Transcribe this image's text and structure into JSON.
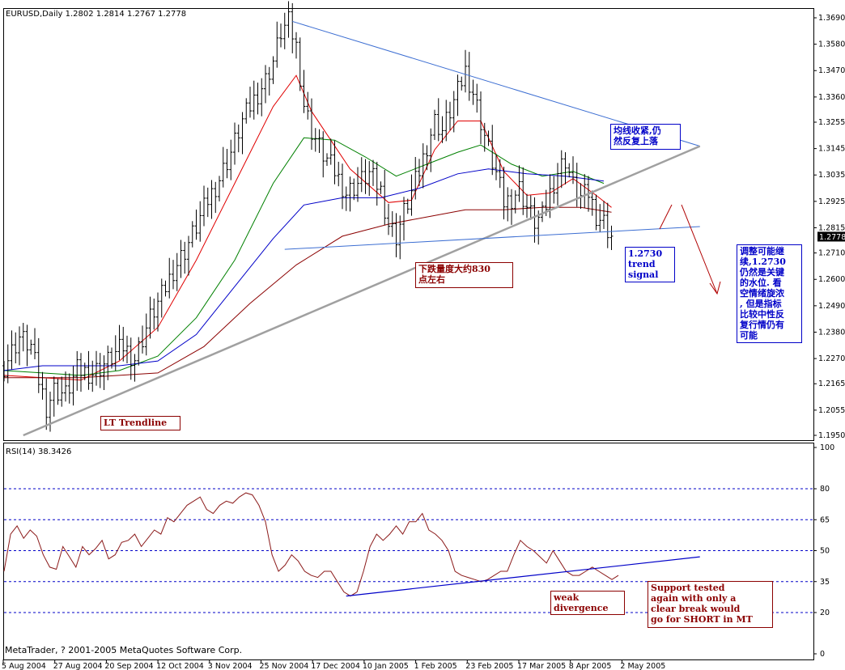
{
  "price_header": "EURUSD,Daily  1.2802 1.2814 1.2767 1.2778",
  "rsi_header": "RSI(14) 38.3426",
  "copyright": "MetaTrader, ? 2001-2005 MetaQuotes Software Corp.",
  "current_price_label": "1.2778",
  "colors": {
    "bar": "#000000",
    "ma_fast": "#e00000",
    "ma_mid": "#008000",
    "ma_slow": "#0000c8",
    "ma_long": "#8b0000",
    "trend_blue": "#3c6ed2",
    "trend_grey": "#a0a0a0",
    "rsi": "#8b1a1a",
    "guide_blue": "#0000c8",
    "annotation_red": "#8b0000",
    "annotation_blue": "#0000c8"
  },
  "annotations": {
    "lt_trendline": "LT Trendline",
    "drop_measure": "下跌量度大约830\n点左右",
    "ma_converge": "均线收紧,仍\n然反复上落",
    "trend_signal": "1.2730\ntrend\nsignal",
    "consolidation": "调整可能继\n续,1.2730\n仍然是关键\n的水位. 看\n空情绪旋浓\n, 但是指标\n比较中性反\n复行情仍有\n可能",
    "weak_divergence": "weak\ndivergence",
    "support_tested": "Support tested\nagain with only a\nclear break would\ngo for SHORT in MT"
  },
  "chart_data": [
    {
      "type": "ohlc",
      "title": "EURUSD,Daily",
      "last": {
        "open": 1.2802,
        "high": 1.2814,
        "low": 1.2767,
        "close": 1.2778
      },
      "ylim": [
        1.195,
        1.369
      ],
      "y_ticks": [
        "1.3690",
        "1.3580",
        "1.3470",
        "1.3360",
        "1.3255",
        "1.3145",
        "1.3035",
        "1.2925",
        "1.2815",
        "1.2710",
        "1.2600",
        "1.2490",
        "1.2380",
        "1.2270",
        "1.2165",
        "1.2055",
        "1.1950"
      ],
      "x_ticks": [
        "5 Aug 2004",
        "27 Aug 2004",
        "20 Sep 2004",
        "12 Oct 2004",
        "3 Nov 2004",
        "25 Nov 2004",
        "17 Dec 2004",
        "10 Jan 2005",
        "1 Feb 2005",
        "23 Feb 2005",
        "17 Mar 2005",
        "8 Apr 2005",
        "2 May 2005"
      ],
      "close_path": [
        [
          0,
          1.224
        ],
        [
          4,
          1.236
        ],
        [
          7,
          1.232
        ],
        [
          9,
          1.218
        ],
        [
          11,
          1.207
        ],
        [
          13,
          1.214
        ],
        [
          16,
          1.212
        ],
        [
          19,
          1.222
        ],
        [
          23,
          1.221
        ],
        [
          27,
          1.226
        ],
        [
          31,
          1.232
        ],
        [
          34,
          1.227
        ],
        [
          38,
          1.244
        ],
        [
          41,
          1.253
        ],
        [
          44,
          1.264
        ],
        [
          47,
          1.272
        ],
        [
          50,
          1.282
        ],
        [
          53,
          1.293
        ],
        [
          56,
          1.302
        ],
        [
          59,
          1.313
        ],
        [
          62,
          1.326
        ],
        [
          65,
          1.335
        ],
        [
          68,
          1.343
        ],
        [
          70,
          1.351
        ],
        [
          72,
          1.363
        ],
        [
          74,
          1.367
        ],
        [
          76,
          1.357
        ],
        [
          78,
          1.333
        ],
        [
          80,
          1.322
        ],
        [
          83,
          1.312
        ],
        [
          86,
          1.305
        ],
        [
          89,
          1.296
        ],
        [
          92,
          1.3
        ],
        [
          95,
          1.304
        ],
        [
          98,
          1.297
        ],
        [
          100,
          1.283
        ],
        [
          102,
          1.278
        ],
        [
          104,
          1.288
        ],
        [
          106,
          1.296
        ],
        [
          108,
          1.305
        ],
        [
          110,
          1.316
        ],
        [
          112,
          1.326
        ],
        [
          114,
          1.322
        ],
        [
          116,
          1.33
        ],
        [
          118,
          1.338
        ],
        [
          120,
          1.347
        ],
        [
          122,
          1.338
        ],
        [
          124,
          1.326
        ],
        [
          126,
          1.314
        ],
        [
          128,
          1.304
        ],
        [
          130,
          1.292
        ],
        [
          132,
          1.294
        ],
        [
          134,
          1.298
        ],
        [
          136,
          1.29
        ],
        [
          138,
          1.284
        ],
        [
          140,
          1.286
        ],
        [
          142,
          1.296
        ],
        [
          144,
          1.305
        ],
        [
          146,
          1.31
        ],
        [
          148,
          1.299
        ],
        [
          150,
          1.294
        ],
        [
          152,
          1.296
        ],
        [
          154,
          1.287
        ],
        [
          156,
          1.284
        ],
        [
          158,
          1.278
        ]
      ],
      "moving_averages": [
        {
          "key": "fast",
          "path": [
            [
              0,
              1.22
            ],
            [
              10,
              1.219
            ],
            [
              20,
              1.218
            ],
            [
              30,
              1.226
            ],
            [
              40,
              1.24
            ],
            [
              50,
              1.268
            ],
            [
              60,
              1.3
            ],
            [
              70,
              1.332
            ],
            [
              76,
              1.345
            ],
            [
              80,
              1.33
            ],
            [
              90,
              1.306
            ],
            [
              100,
              1.292
            ],
            [
              106,
              1.293
            ],
            [
              112,
              1.314
            ],
            [
              118,
              1.326
            ],
            [
              124,
              1.326
            ],
            [
              130,
              1.305
            ],
            [
              136,
              1.295
            ],
            [
              142,
              1.296
            ],
            [
              148,
              1.302
            ],
            [
              154,
              1.295
            ],
            [
              158,
              1.29
            ]
          ]
        },
        {
          "key": "mid",
          "path": [
            [
              0,
              1.222
            ],
            [
              10,
              1.221
            ],
            [
              20,
              1.22
            ],
            [
              30,
              1.222
            ],
            [
              40,
              1.228
            ],
            [
              50,
              1.244
            ],
            [
              60,
              1.268
            ],
            [
              70,
              1.3
            ],
            [
              78,
              1.319
            ],
            [
              86,
              1.318
            ],
            [
              94,
              1.311
            ],
            [
              102,
              1.303
            ],
            [
              110,
              1.308
            ],
            [
              118,
              1.313
            ],
            [
              124,
              1.316
            ],
            [
              132,
              1.308
            ],
            [
              140,
              1.303
            ],
            [
              148,
              1.305
            ],
            [
              156,
              1.3
            ]
          ]
        },
        {
          "key": "slow",
          "path": [
            [
              0,
              1.222
            ],
            [
              10,
              1.224
            ],
            [
              20,
              1.224
            ],
            [
              30,
              1.224
            ],
            [
              40,
              1.226
            ],
            [
              50,
              1.237
            ],
            [
              60,
              1.257
            ],
            [
              70,
              1.277
            ],
            [
              78,
              1.291
            ],
            [
              88,
              1.294
            ],
            [
              98,
              1.294
            ],
            [
              108,
              1.298
            ],
            [
              118,
              1.304
            ],
            [
              126,
              1.306
            ],
            [
              136,
              1.304
            ],
            [
              146,
              1.303
            ],
            [
              156,
              1.301
            ]
          ]
        },
        {
          "key": "long",
          "path": [
            [
              0,
              1.219
            ],
            [
              20,
              1.219
            ],
            [
              40,
              1.221
            ],
            [
              52,
              1.232
            ],
            [
              64,
              1.25
            ],
            [
              76,
              1.266
            ],
            [
              88,
              1.278
            ],
            [
              100,
              1.283
            ],
            [
              110,
              1.286
            ],
            [
              120,
              1.289
            ],
            [
              130,
              1.289
            ],
            [
              140,
              1.29
            ],
            [
              150,
              1.29
            ],
            [
              158,
              1.288
            ]
          ]
        }
      ],
      "trendlines": [
        {
          "key": "down",
          "from": [
            75,
            1.3675
          ],
          "to": [
            181,
            1.3155
          ]
        },
        {
          "key": "lt_up",
          "from": [
            5,
            1.195
          ],
          "to": [
            181,
            1.3155
          ]
        },
        {
          "key": "support",
          "from": [
            73,
            1.2725
          ],
          "to": [
            181,
            1.282
          ]
        }
      ]
    },
    {
      "type": "line",
      "title": "RSI(14)",
      "last_value": 38.3426,
      "ylim": [
        0,
        100
      ],
      "y_ticks": [
        "100",
        "80",
        "65",
        "50",
        "35",
        "20",
        "0"
      ],
      "guide_levels": [
        80,
        65,
        50,
        35,
        20
      ],
      "values": [
        40,
        58,
        62,
        56,
        60,
        57,
        48,
        42,
        41,
        52,
        47,
        42,
        52,
        48,
        51,
        55,
        46,
        48,
        54,
        55,
        58,
        52,
        56,
        60,
        58,
        66,
        64,
        68,
        72,
        74,
        76,
        70,
        68,
        72,
        74,
        73,
        76,
        78,
        77,
        72,
        64,
        48,
        40,
        43,
        48,
        45,
        40,
        38,
        37,
        40,
        40,
        35,
        30,
        28,
        30,
        40,
        52,
        58,
        55,
        58,
        62,
        58,
        64,
        64,
        68,
        60,
        58,
        55,
        50,
        40,
        38,
        37,
        36,
        35,
        36,
        38,
        40,
        40,
        48,
        55,
        52,
        50,
        47,
        44,
        50,
        45,
        40,
        38,
        38,
        40,
        42,
        40,
        38,
        36,
        38
      ],
      "trendline": {
        "from": [
          89,
          28
        ],
        "to": [
          181,
          47
        ]
      }
    }
  ]
}
